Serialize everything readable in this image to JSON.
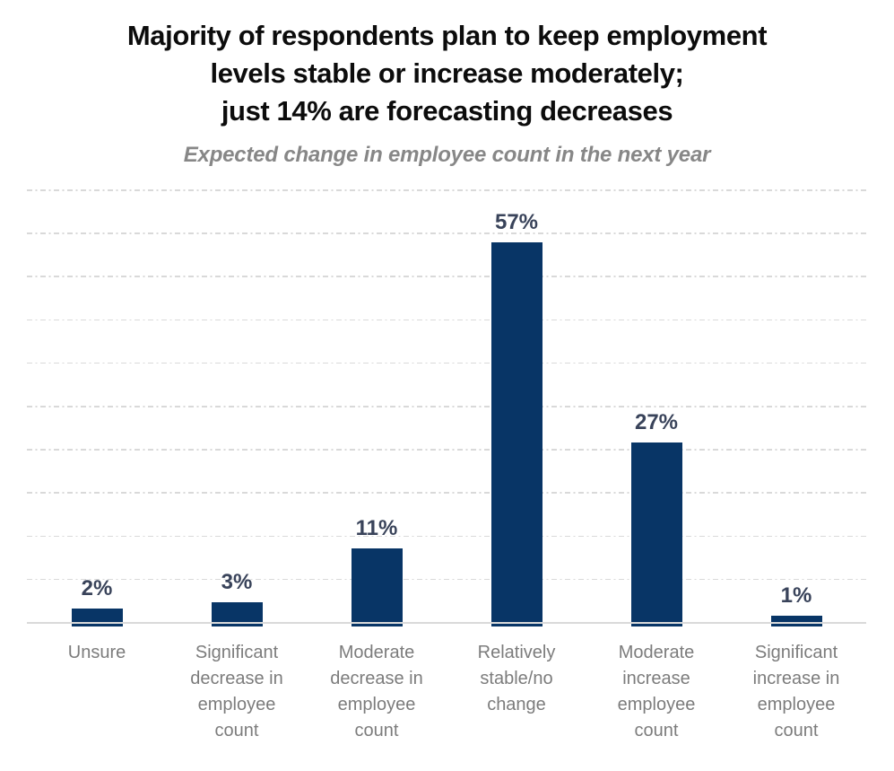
{
  "title": {
    "lines": [
      "Majority of respondents plan to keep employment",
      "levels stable or increase moderately;",
      "just 14% are forecasting decreases"
    ]
  },
  "subtitle": {
    "text": "Expected change in employee count in the next year"
  },
  "colors": {
    "background": "#ffffff",
    "title": "#0c0c0c",
    "subtitle": "#878787",
    "bar": "#083566",
    "data_label": "#39435a",
    "category_label": "#7c7c7c",
    "gridline": "#d9d9d9",
    "axis_line": "#d9d9d9"
  },
  "chart_data": {
    "type": "bar",
    "title": "Majority of respondents plan to keep employment levels stable or increase moderately; just 14% are forecasting decreases",
    "subtitle": "Expected change in employee count in the next year",
    "categories": [
      "Unsure",
      "Significant decrease in employee count",
      "Moderate decrease in employee count",
      "Relatively stable/no change",
      "Moderate increase employee count",
      "Significant increase in employee count"
    ],
    "category_label_lines": [
      [
        "Unsure"
      ],
      [
        "Significant",
        "decrease in",
        "employee",
        "count"
      ],
      [
        "Moderate",
        "decrease in",
        "employee",
        "count"
      ],
      [
        "Relatively",
        "stable/no",
        "change"
      ],
      [
        "Moderate",
        "increase",
        "employee",
        "count"
      ],
      [
        "Significant",
        "increase in",
        "employee",
        "count"
      ]
    ],
    "values": [
      2,
      3,
      11,
      57,
      27,
      1
    ],
    "data_labels": [
      "2%",
      "3%",
      "11%",
      "57%",
      "27%",
      "1%"
    ],
    "unit": "%",
    "xlabel": "",
    "ylabel": "",
    "ylim": [
      0,
      65
    ],
    "gridline_count": 10,
    "gridline_style": "dash-dot",
    "grid": true,
    "legend": "none",
    "data_labels_position": "above-bar",
    "category_axis_visible": true,
    "value_axis_labels_visible": false
  }
}
